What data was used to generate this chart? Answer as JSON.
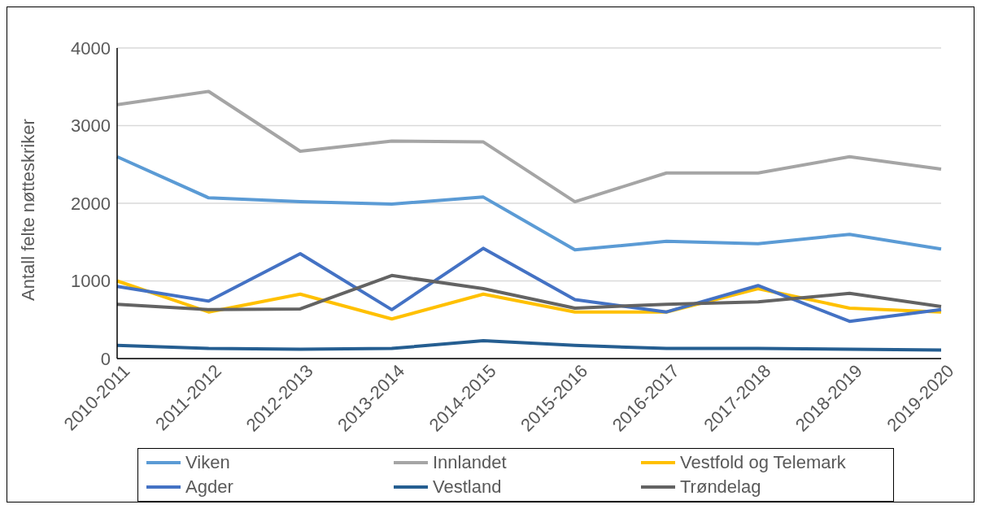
{
  "chart_data": {
    "type": "line",
    "ylabel": "Antall felte nøtteskriker",
    "categories": [
      "2010-2011",
      "2011-2012",
      "2012-2013",
      "2013-2014",
      "2014-2015",
      "2015-2016",
      "2016-2017",
      "2017-2018",
      "2018-2019",
      "2019-2020"
    ],
    "series": [
      {
        "name": "Viken",
        "color": "#5b9bd5",
        "values": [
          2600,
          2070,
          2020,
          1990,
          2080,
          1400,
          1510,
          1480,
          1600,
          1410
        ]
      },
      {
        "name": "Innlandet",
        "color": "#a5a5a5",
        "values": [
          3270,
          3440,
          2670,
          2800,
          2790,
          2020,
          2390,
          2390,
          2600,
          2440
        ]
      },
      {
        "name": "Vestfold og Telemark",
        "color": "#ffc000",
        "values": [
          1000,
          600,
          830,
          510,
          830,
          600,
          600,
          900,
          650,
          600
        ]
      },
      {
        "name": "Agder",
        "color": "#4472c4",
        "values": [
          930,
          740,
          1350,
          630,
          1420,
          760,
          600,
          940,
          480,
          630
        ]
      },
      {
        "name": "Vestland",
        "color": "#255e91",
        "values": [
          170,
          130,
          120,
          130,
          230,
          170,
          130,
          130,
          120,
          110
        ]
      },
      {
        "name": "Trøndelag",
        "color": "#636363",
        "values": [
          700,
          630,
          640,
          1070,
          900,
          650,
          700,
          730,
          840,
          670
        ]
      }
    ],
    "ylim": [
      0,
      4000
    ],
    "yticks": [
      0,
      1000,
      2000,
      3000,
      4000
    ],
    "grid": "y",
    "legend": "bottom",
    "marker": "none",
    "line_style": "solid"
  }
}
